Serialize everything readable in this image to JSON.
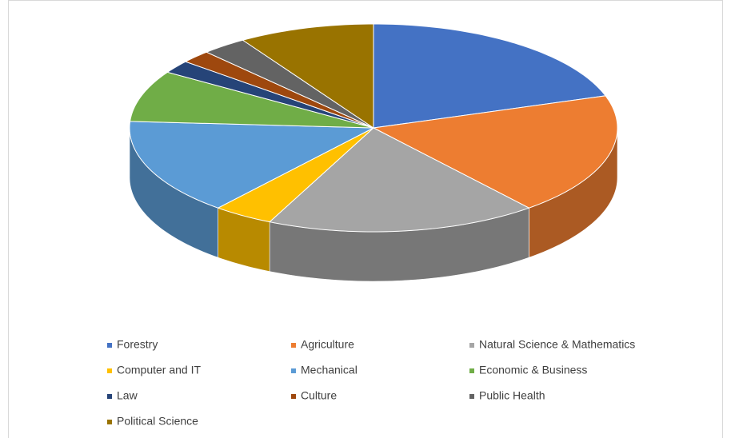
{
  "chart_data": {
    "type": "pie3d",
    "categories": [
      "Forestry",
      "Agriculture",
      "Natural Science & Mathematics",
      "Computer and IT",
      "Mechanical",
      "Economic & Business",
      "Law",
      "Culture",
      "Public Health",
      "Political Science"
    ],
    "values": [
      20,
      19,
      18,
      4,
      15,
      8,
      2,
      2,
      3,
      9
    ],
    "colors": [
      "#4472c4",
      "#ed7d31",
      "#a5a5a5",
      "#ffc000",
      "#5b9bd5",
      "#70ad47",
      "#264478",
      "#9e480e",
      "#636363",
      "#997300"
    ],
    "legend": "bottom"
  }
}
